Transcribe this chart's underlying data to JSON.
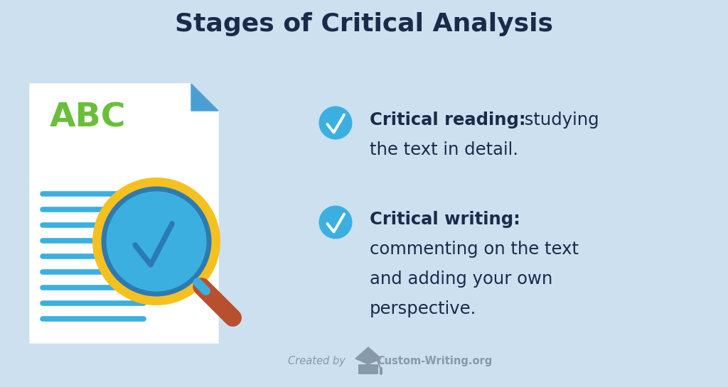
{
  "title": "Stages of Critical Analysis",
  "title_fontsize": 26,
  "title_color": "#1a2b4a",
  "background_color": "#cce0f0",
  "item1_bold": "Critical reading:",
  "item1_rest": " studying",
  "item1_line2": "the text in detail.",
  "item2_bold": "Critical writing:",
  "item2_line2": "commenting on the text",
  "item2_line3": "and adding your own",
  "item2_line4": "perspective.",
  "bullet_color": "#3bb0e0",
  "text_color": "#1a2b4a",
  "text_fontsize": 17.5,
  "footer_text": "Created by",
  "footer_brand": "Custom-Writing.org",
  "footer_color": "#8899aa",
  "doc_color": "#ffffff",
  "doc_fold_color": "#4a9ed4",
  "abc_color": "#6abf3a",
  "line_color": "#3bb0e0",
  "mag_yellow": "#f5c120",
  "mag_blue_outer": "#3bb0e0",
  "mag_blue_inner": "#3bb0e0",
  "mag_check_color": "#2a7ab8",
  "handle_color": "#b85030"
}
